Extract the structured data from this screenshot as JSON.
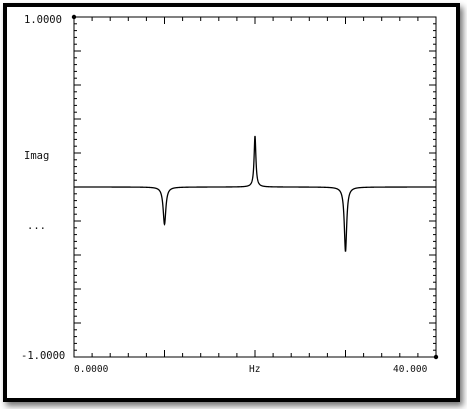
{
  "chart_data": {
    "type": "line",
    "ylabel": "Imag",
    "xlabel": "Hz",
    "y_top_label": "1.0000",
    "y_bottom_label": "-1.0000",
    "x_left_label": "0.0000",
    "x_right_label": "40.000",
    "ellipsis": "...",
    "xlim": [
      0,
      40
    ],
    "ylim": [
      -1,
      1
    ],
    "baseline": 0.0,
    "series": [
      {
        "peaks": [
          {
            "x": 10.0,
            "y": -0.22,
            "width": 0.18
          },
          {
            "x": 20.0,
            "y": 0.3,
            "width": 0.12
          },
          {
            "x": 30.0,
            "y": -0.38,
            "width": 0.16
          }
        ]
      }
    ],
    "grid": false,
    "ticks_x_major": 4,
    "ticks_x_minor": 5,
    "ticks_y_major": 10,
    "ticks_y_minor": 5,
    "line_color": "#000000"
  }
}
